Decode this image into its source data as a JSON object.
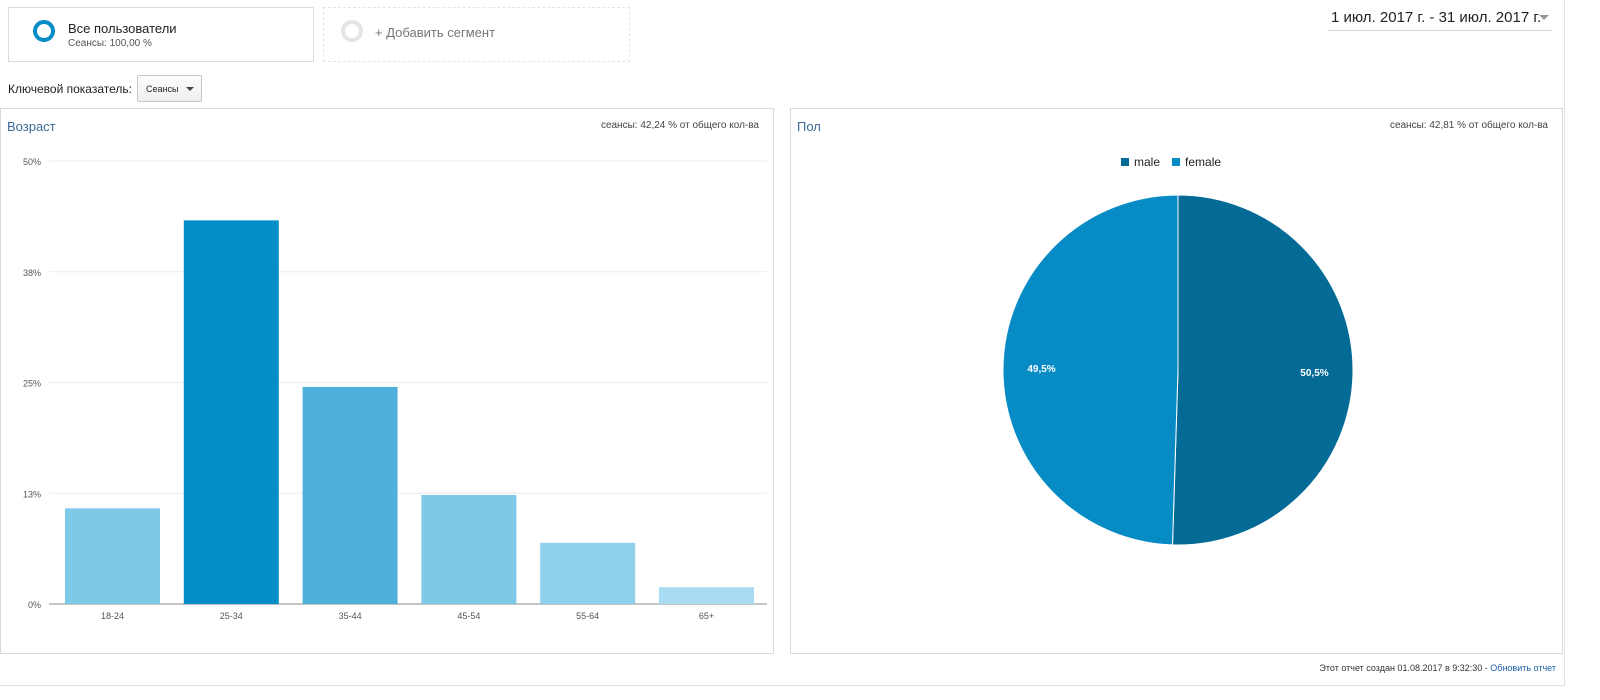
{
  "segments": {
    "all_users": {
      "title": "Все пользователи",
      "subtitle": "Сеансы: 100,00 %"
    },
    "add_segment": {
      "label": "+ Добавить сегмент"
    }
  },
  "date_range": {
    "label": "1 июл. 2017 г. - 31 июл. 2017 г."
  },
  "metric": {
    "label": "Ключевой показатель:",
    "selected": "Сеансы"
  },
  "age_panel": {
    "title": "Возраст",
    "note": "сеансы: 42,24 % от общего кол-ва"
  },
  "gender_panel": {
    "title": "Пол",
    "note": "сеансы: 42,81 % от общего кол-ва"
  },
  "footer": {
    "text": "Этот отчет создан 01.08.2017 в 9:32:30 - ",
    "refresh_link": "Обновить отчет"
  },
  "chart_data": [
    {
      "type": "bar",
      "title": "Возраст",
      "categories": [
        "18-24",
        "25-34",
        "35-44",
        "45-54",
        "55-64",
        "65+"
      ],
      "values": [
        10.8,
        43.3,
        24.5,
        12.3,
        6.9,
        1.9
      ],
      "y_ticks": [
        "0%",
        "13%",
        "25%",
        "38%",
        "50%"
      ],
      "ylim": [
        0,
        50
      ],
      "grid": true,
      "colors": [
        "#7ec8e8",
        "#058dc7",
        "#50b0dc",
        "#7ec8e8",
        "#8fd0ec",
        "#a9dcf2"
      ]
    },
    {
      "type": "pie",
      "title": "Пол",
      "labels": [
        "male",
        "female"
      ],
      "values": [
        50.5,
        49.5
      ],
      "value_labels": [
        "50,5%",
        "49,5%"
      ],
      "colors": [
        "#046b97",
        "#078bc5"
      ],
      "legend_position": "top"
    }
  ]
}
